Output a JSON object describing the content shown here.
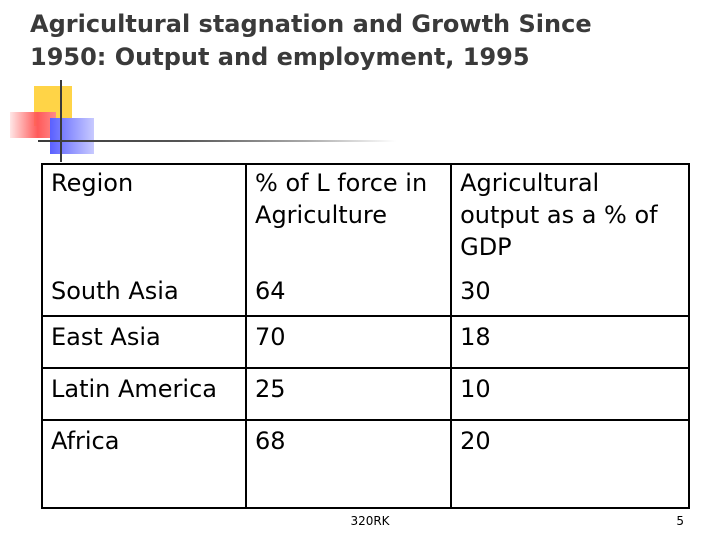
{
  "slide": {
    "title_line1": "Agricultural stagnation and Growth Since",
    "title_line2": "1950: Output and employment, 1995",
    "footer": "320RK",
    "page_number": "5"
  },
  "table": {
    "headers": [
      "Region",
      "% of L force in Agriculture",
      "Agricultural output as a % of GDP"
    ],
    "rows": [
      [
        "South Asia",
        "64",
        "30"
      ],
      [
        "East Asia",
        "70",
        "18"
      ],
      [
        "Latin America",
        "25",
        "10"
      ],
      [
        "Africa",
        "68",
        "20"
      ]
    ]
  },
  "colors": {
    "title": "#3a3a3a",
    "deco_yellow": "#ffd447",
    "deco_red": "#ff5a5a",
    "deco_blue": "#5a60ff"
  }
}
